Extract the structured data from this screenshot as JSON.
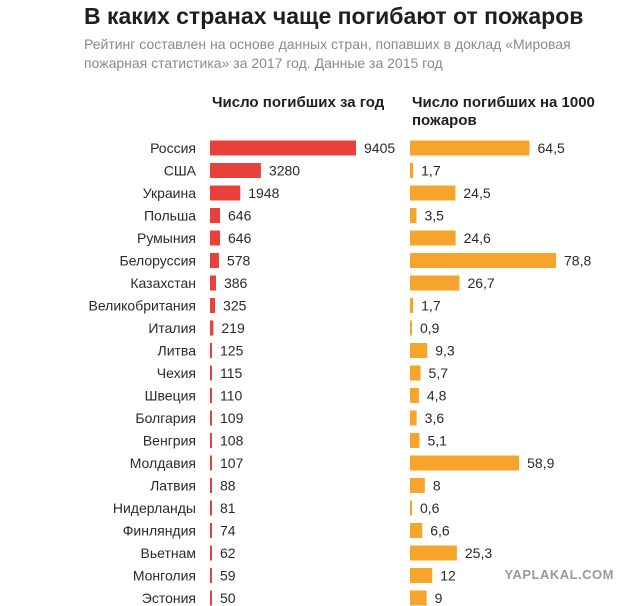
{
  "header": {
    "title": "В каких странах чаще погибают от пожаров",
    "subtitle": "Рейтинг составлен на основе данных стран, попавших в доклад «Мировая пожарная статистика» за 2017 год. Данные за 2015 год"
  },
  "columns": {
    "deaths": "Число погибших за год",
    "per1000": "Число погибших на 1000 пожаров"
  },
  "watermark": "YAPLAKAL.COM",
  "colors": {
    "deaths": "#e8413c",
    "per1000": "#f7a42c"
  },
  "chart_data": {
    "type": "bar",
    "categories": [
      "Россия",
      "США",
      "Украина",
      "Польша",
      "Румыния",
      "Белоруссия",
      "Казахстан",
      "Великобритания",
      "Италия",
      "Литва",
      "Чехия",
      "Швеция",
      "Болгария",
      "Венгрия",
      "Молдавия",
      "Латвия",
      "Нидерланды",
      "Финляндия",
      "Вьетнам",
      "Монголия",
      "Эстония"
    ],
    "series": [
      {
        "name": "Число погибших за год",
        "values": [
          9405,
          3280,
          1948,
          646,
          646,
          578,
          386,
          325,
          219,
          125,
          115,
          110,
          109,
          108,
          107,
          88,
          81,
          74,
          62,
          59,
          50
        ]
      },
      {
        "name": "Число погибших на 1000 пожаров",
        "values": [
          64.5,
          1.7,
          24.5,
          3.5,
          24.6,
          78.8,
          26.7,
          1.7,
          0.9,
          9.3,
          5.7,
          4.8,
          3.6,
          5.1,
          58.9,
          8,
          0.6,
          6.6,
          25.3,
          12,
          9
        ]
      }
    ],
    "value_labels": {
      "deaths": [
        "9405",
        "3280",
        "1948",
        "646",
        "646",
        "578",
        "386",
        "325",
        "219",
        "125",
        "115",
        "110",
        "109",
        "108",
        "107",
        "88",
        "81",
        "74",
        "62",
        "59",
        "50"
      ],
      "per1000": [
        "64,5",
        "1,7",
        "24,5",
        "3,5",
        "24,6",
        "78,8",
        "26,7",
        "1,7",
        "0,9",
        "9,3",
        "5,7",
        "4,8",
        "3,6",
        "5,1",
        "58,9",
        "8",
        "0,6",
        "6,6",
        "25,3",
        "12",
        "9"
      ]
    }
  }
}
